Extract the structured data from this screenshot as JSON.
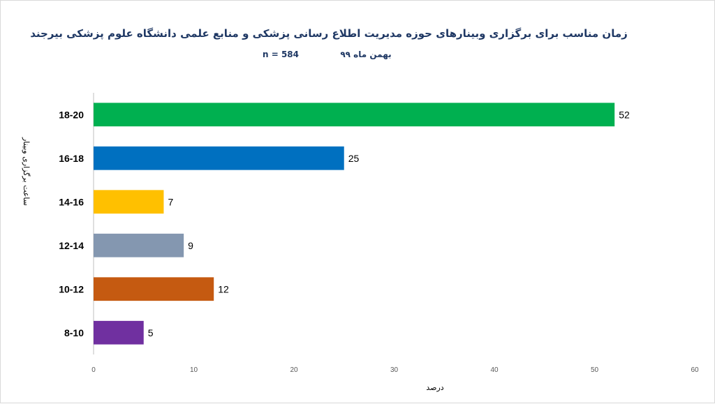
{
  "chart_data": {
    "type": "bar",
    "orientation": "horizontal",
    "title": "زمان مناسب برای برگزاری وبینارهای حوزه مدیریت اطلاع رسانی پزشکی و منابع علمی دانشگاه علوم پزشکی بیرجند",
    "subtitle_date": "بهمن ماه ۹۹",
    "subtitle_n": "n = 584",
    "xlabel": "درصد",
    "ylabel": "ساعت برگزاری وبینار",
    "xlim": [
      0,
      60
    ],
    "xticks": [
      "0",
      "10",
      "20",
      "30",
      "40",
      "50",
      "60"
    ],
    "categories": [
      "18-20",
      "16-18",
      "14-16",
      "12-14",
      "10-12",
      "8-10"
    ],
    "values": [
      52,
      25,
      7,
      9,
      12,
      5
    ],
    "value_labels": [
      "52",
      "25",
      "7",
      "9",
      "12",
      "5"
    ],
    "colors": [
      "#00b050",
      "#0070c0",
      "#ffc000",
      "#8497b0",
      "#c55a11",
      "#7030a0"
    ],
    "grid": false,
    "legend": "none"
  }
}
